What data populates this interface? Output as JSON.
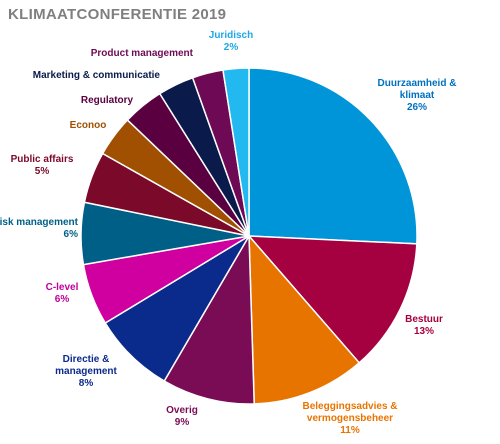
{
  "chart_data": {
    "type": "pie",
    "title": "KLIMAATCONFERENTIE 2019",
    "start_angle_deg": 0,
    "direction": "clockwise",
    "slices": [
      {
        "label": [
          "Duurzaamheid &",
          "klimaat"
        ],
        "value_label": "26%",
        "value": 26,
        "color": "#0095D9",
        "label_color": "#0070C0"
      },
      {
        "label": [
          "Bestuur"
        ],
        "value_label": "13%",
        "value": 13,
        "color": "#A5003F",
        "label_color": "#A5003F"
      },
      {
        "label": [
          "Beleggingsadvies &",
          "vermogensbeheer"
        ],
        "value_label": "11%",
        "value": 11,
        "color": "#E87400",
        "label_color": "#E87400"
      },
      {
        "label": [
          "Overig"
        ],
        "value_label": "9%",
        "value": 9,
        "color": "#7A0B55",
        "label_color": "#7A0B55"
      },
      {
        "label": [
          "Directie &",
          "management"
        ],
        "value_label": "8%",
        "value": 8,
        "color": "#0A2A8C",
        "label_color": "#0A2A8C"
      },
      {
        "label": [
          "C-level"
        ],
        "value_label": "6%",
        "value": 6,
        "color": "#D000A0",
        "label_color": "#C0009A"
      },
      {
        "label": [
          "Risk management"
        ],
        "value_label": "6%",
        "value": 6,
        "color": "#005F86",
        "label_color": "#005F86"
      },
      {
        "label": [
          "Public affairs"
        ],
        "value_label": "5%",
        "value": 5,
        "color": "#7B0A2A",
        "label_color": "#7B0A2A"
      },
      {
        "label": [
          "Econoo"
        ],
        "value_label": "",
        "value": 4,
        "color": "#A05000",
        "label_color": "#A05000"
      },
      {
        "label": [
          "Regulatory"
        ],
        "value_label": "",
        "value": 4,
        "color": "#5A0040",
        "label_color": "#5A0040"
      },
      {
        "label": [
          "Marketing & communicatie"
        ],
        "value_label": "",
        "value": 3.5,
        "color": "#0A1A4A",
        "label_color": "#0A1A4A"
      },
      {
        "label": [
          "Product management"
        ],
        "value_label": "",
        "value": 3,
        "color": "#6E0A55",
        "label_color": "#6E0A55"
      },
      {
        "label": [
          "Juridisch"
        ],
        "value_label": "2%",
        "value": 2.5,
        "color": "#22B8F0",
        "label_color": "#1EA8E8"
      }
    ]
  }
}
